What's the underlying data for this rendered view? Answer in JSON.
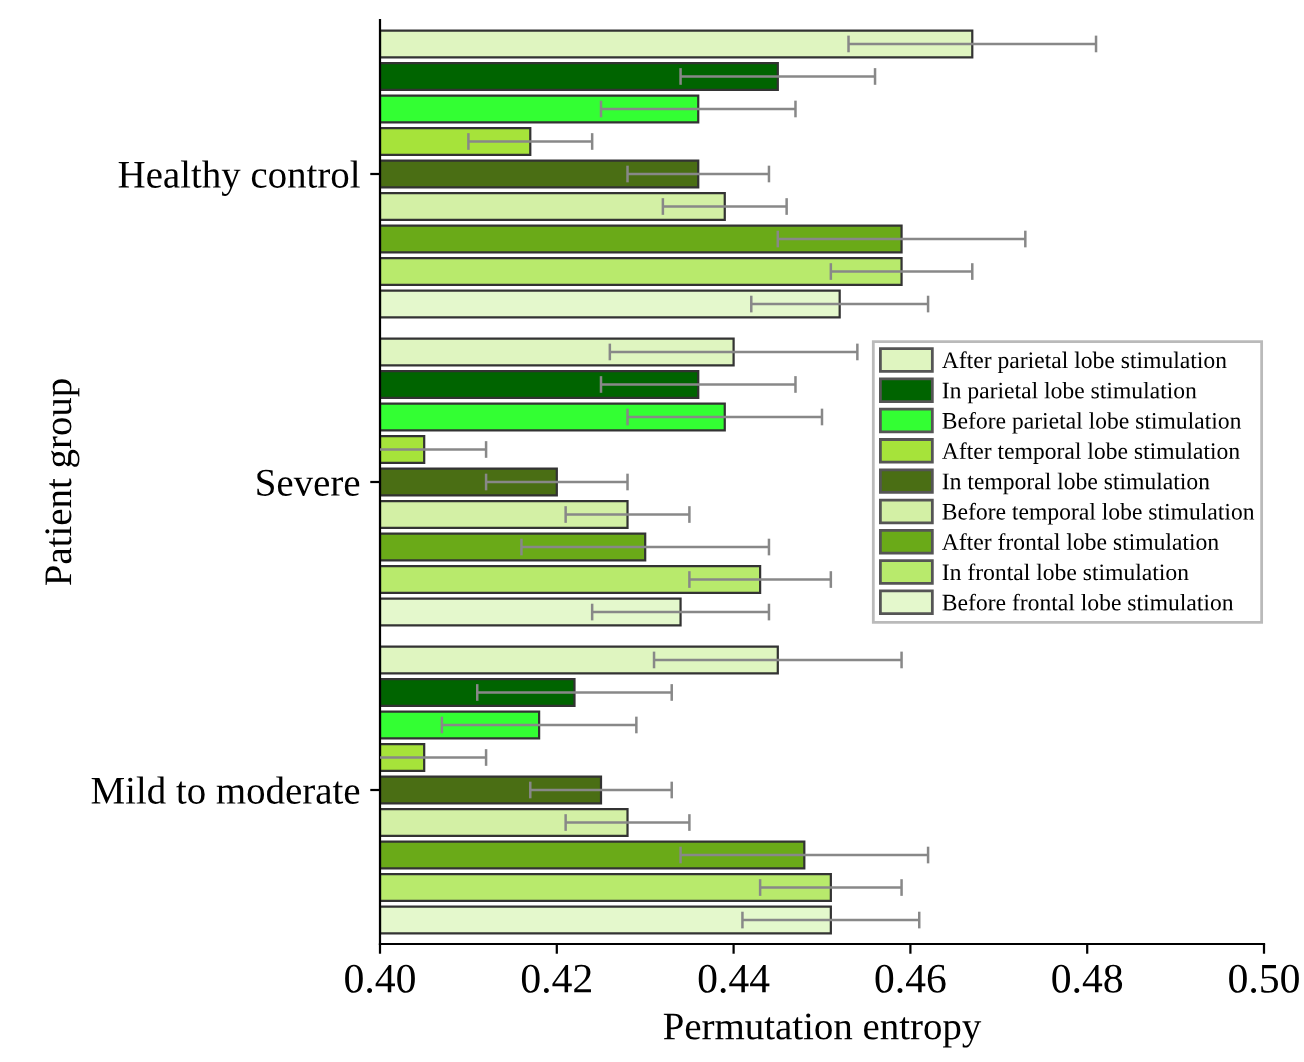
{
  "chart_data": {
    "type": "bar",
    "orientation": "horizontal",
    "xlabel": "Permutation entropy",
    "ylabel": "Patient group",
    "categories": [
      "Healthy control",
      "Severe",
      "Mild to moderate"
    ],
    "xlim": [
      0.4,
      0.5
    ],
    "xticks": [
      {
        "value": 0.4,
        "label": "0.40"
      },
      {
        "value": 0.42,
        "label": "0.42"
      },
      {
        "value": 0.44,
        "label": "0.44"
      },
      {
        "value": 0.46,
        "label": "0.46"
      },
      {
        "value": 0.48,
        "label": "0.48"
      },
      {
        "value": 0.5,
        "label": "0.50"
      }
    ],
    "legend": "center right",
    "grid": false,
    "series": [
      {
        "name": "After parietal lobe stimulation",
        "color": "#dff5c0",
        "values": [
          0.467,
          0.44,
          0.445
        ],
        "errors": [
          0.014,
          0.014,
          0.014
        ]
      },
      {
        "name": "In parietal lobe stimulation",
        "color": "#006400",
        "values": [
          0.445,
          0.436,
          0.422
        ],
        "errors": [
          0.011,
          0.011,
          0.011
        ]
      },
      {
        "name": "Before parietal lobe stimulation",
        "color": "#33ff33",
        "values": [
          0.436,
          0.439,
          0.418
        ],
        "errors": [
          0.011,
          0.011,
          0.011
        ]
      },
      {
        "name": "After temporal lobe stimulation",
        "color": "#a6e33a",
        "values": [
          0.417,
          0.405,
          0.405
        ],
        "errors": [
          0.007,
          0.007,
          0.007
        ]
      },
      {
        "name": "In temporal lobe stimulation",
        "color": "#4a6e14",
        "values": [
          0.436,
          0.42,
          0.425
        ],
        "errors": [
          0.008,
          0.008,
          0.008
        ]
      },
      {
        "name": "Before temporal lobe stimulation",
        "color": "#d3f0a5",
        "values": [
          0.439,
          0.428,
          0.428
        ],
        "errors": [
          0.007,
          0.007,
          0.007
        ]
      },
      {
        "name": "After frontal lobe stimulation",
        "color": "#6aaa18",
        "values": [
          0.459,
          0.43,
          0.448
        ],
        "errors": [
          0.014,
          0.014,
          0.014
        ]
      },
      {
        "name": "In frontal lobe stimulation",
        "color": "#b8ea6c",
        "values": [
          0.459,
          0.443,
          0.451
        ],
        "errors": [
          0.008,
          0.008,
          0.008
        ]
      },
      {
        "name": "Before frontal lobe stimulation",
        "color": "#e4f8cc",
        "values": [
          0.452,
          0.434,
          0.451
        ],
        "errors": [
          0.01,
          0.01,
          0.01
        ]
      }
    ]
  }
}
